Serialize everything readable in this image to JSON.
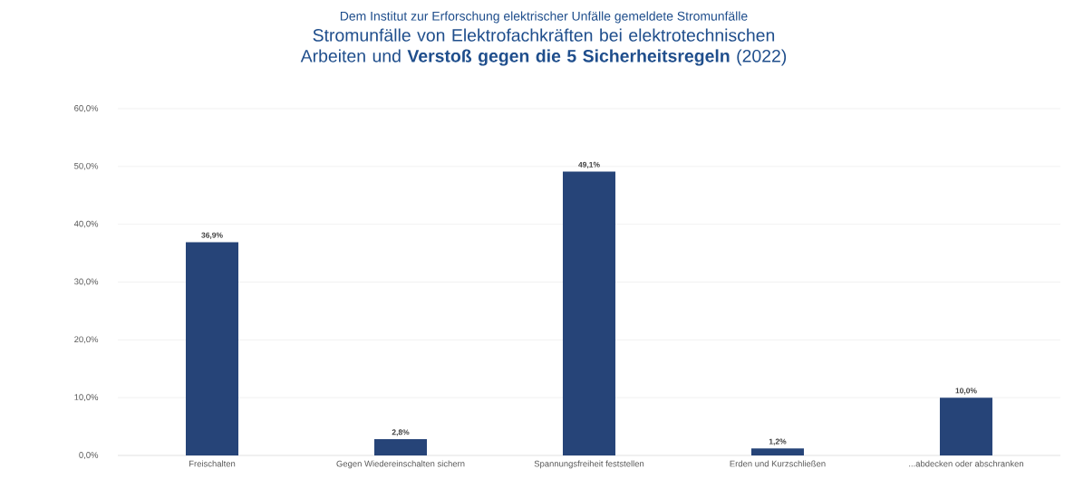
{
  "chart_data": {
    "type": "bar",
    "subtitle": "Dem Institut zur Erforschung elektrischer Unfälle gemeldete Stromunfälle",
    "title": "Stromunfälle von Elektrofachkräften bei elektrotechnischen Arbeiten und **Verstoß gegen die 5 Sicherheitsregeln** (2022)",
    "categories": [
      "Freischalten",
      "Gegen Wiedereinschalten sichern",
      "Spannungsfreiheit feststellen",
      "Erden und Kurzschließen",
      "...abdecken oder abschranken"
    ],
    "values": [
      36.9,
      2.8,
      49.1,
      1.2,
      10.0
    ],
    "value_labels": [
      "36,9%",
      "2,8%",
      "49,1%",
      "1,2%",
      "10,0%"
    ],
    "color": "#264478",
    "ylim": [
      0,
      60
    ],
    "yticks": [
      {
        "value": 0,
        "label": "0,0%"
      },
      {
        "value": 10,
        "label": "10,0%"
      },
      {
        "value": 20,
        "label": "20,0%"
      },
      {
        "value": 30,
        "label": "30,0%"
      },
      {
        "value": 40,
        "label": "40,0%"
      },
      {
        "value": 50,
        "label": "50,0%"
      },
      {
        "value": 60,
        "label": "60,0%"
      }
    ],
    "grid": "y"
  }
}
